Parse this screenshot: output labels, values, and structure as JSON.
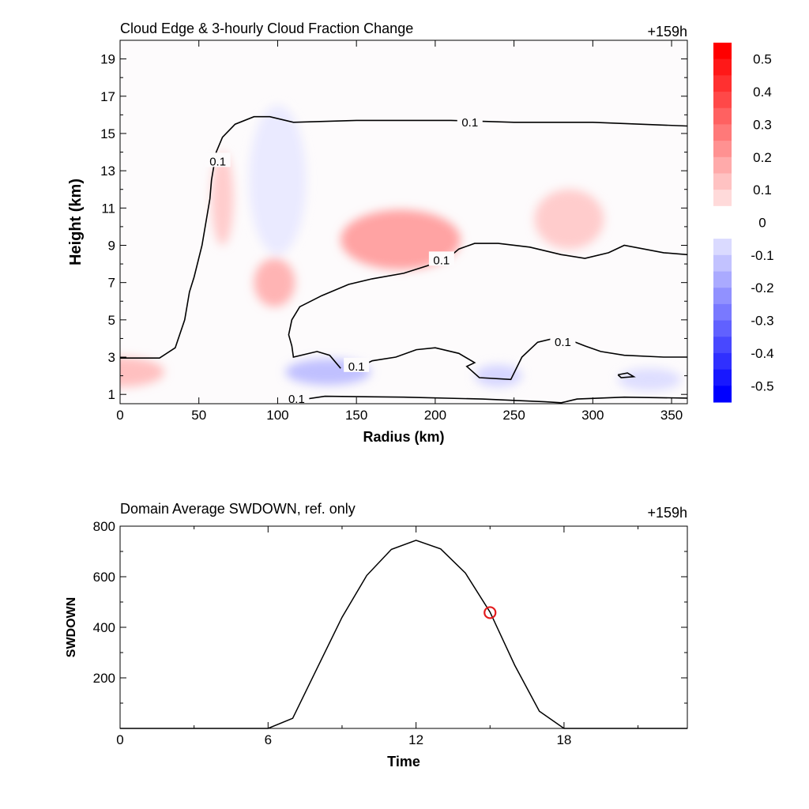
{
  "chart_data": [
    {
      "type": "heatmap",
      "title": "Cloud Edge & 3-hourly Cloud Fraction Change",
      "time_label": "+159h",
      "xlabel": "Radius (km)",
      "ylabel": "Height (km)",
      "xlim": [
        0,
        360
      ],
      "ylim": [
        0.5,
        20
      ],
      "xticks": [
        0,
        50,
        100,
        150,
        200,
        250,
        300,
        350
      ],
      "yticks": [
        1,
        3,
        5,
        7,
        9,
        11,
        13,
        15,
        17,
        19
      ],
      "colorbar": {
        "min": -0.55,
        "max": 0.55,
        "step": 0.05,
        "ticks": [
          "0.5",
          "0.4",
          "0.3",
          "0.2",
          "0.1",
          "0",
          "-0.1",
          "-0.2",
          "-0.3",
          "-0.4",
          "-0.5"
        ],
        "colors": {
          "positive": "#ff0000",
          "negative": "#0000ff",
          "zero": "#ffffff"
        }
      },
      "contour_level_label": "0.1",
      "contours": [
        {
          "points": [
            [
              0,
              2.95
            ],
            [
              25,
              2.95
            ],
            [
              35,
              3.5
            ],
            [
              41,
              5
            ],
            [
              44,
              6.5
            ],
            [
              47,
              7.3
            ],
            [
              52,
              9
            ],
            [
              55,
              10.5
            ],
            [
              57,
              11.5
            ],
            [
              58,
              12.5
            ],
            [
              61,
              14
            ],
            [
              65,
              14.8
            ],
            [
              73,
              15.5
            ],
            [
              85,
              15.9
            ],
            [
              95,
              15.9
            ],
            [
              110,
              15.6
            ],
            [
              150,
              15.7
            ],
            [
              210,
              15.7
            ],
            [
              250,
              15.6
            ],
            [
              300,
              15.6
            ],
            [
              330,
              15.5
            ],
            [
              360,
              15.4
            ]
          ],
          "label_points": [
            [
              62,
              13.5
            ],
            [
              222,
              15.6
            ]
          ]
        },
        {
          "points": [
            [
              140,
              2.4
            ],
            [
              133,
              3.1
            ],
            [
              125,
              3.3
            ],
            [
              110,
              3.0
            ],
            [
              109,
              3.6
            ],
            [
              107,
              4.2
            ],
            [
              109,
              5.0
            ],
            [
              114,
              5.7
            ],
            [
              128,
              6.3
            ],
            [
              145,
              6.9
            ],
            [
              160,
              7.2
            ],
            [
              180,
              7.5
            ],
            [
              195,
              7.9
            ],
            [
              208,
              8.3
            ],
            [
              215,
              8.8
            ],
            [
              225,
              9.1
            ],
            [
              240,
              9.1
            ],
            [
              260,
              8.9
            ],
            [
              280,
              8.5
            ],
            [
              295,
              8.3
            ],
            [
              310,
              8.6
            ],
            [
              320,
              9.0
            ],
            [
              345,
              8.6
            ],
            [
              360,
              8.5
            ]
          ],
          "label_points": [
            [
              204,
              8.2
            ]
          ]
        },
        {
          "points": [
            [
              148,
              2.3
            ],
            [
              160,
              2.8
            ],
            [
              175,
              3.0
            ],
            [
              188,
              3.4
            ],
            [
              200,
              3.5
            ],
            [
              215,
              3.2
            ],
            [
              225,
              2.7
            ],
            [
              220,
              2.5
            ],
            [
              228,
              1.9
            ],
            [
              248,
              1.8
            ],
            [
              255,
              3.0
            ],
            [
              265,
              3.8
            ],
            [
              280,
              4.1
            ],
            [
              295,
              3.6
            ],
            [
              305,
              3.3
            ],
            [
              320,
              3.1
            ],
            [
              345,
              3.0
            ],
            [
              360,
              3.0
            ]
          ],
          "label_points": [
            [
              281,
              3.8
            ],
            [
              150,
              2.5
            ]
          ]
        },
        {
          "points": [
            [
              110,
              0.65
            ],
            [
              130,
              0.9
            ],
            [
              180,
              0.85
            ],
            [
              230,
              0.75
            ],
            [
              270,
              0.6
            ],
            [
              280,
              0.55
            ],
            [
              290,
              0.75
            ],
            [
              320,
              0.85
            ],
            [
              360,
              0.8
            ]
          ],
          "label_points": [
            [
              112,
              0.75
            ]
          ]
        },
        {
          "points": [
            [
              316,
              2.05
            ],
            [
              322,
              2.15
            ],
            [
              326,
              1.95
            ],
            [
              318,
              1.9
            ],
            [
              316,
              2.05
            ]
          ],
          "label_points": []
        }
      ],
      "anomalies": [
        {
          "r": 0,
          "z": 2.2,
          "dr": 28,
          "dz": 0.8,
          "value": 0.15
        },
        {
          "r": 65,
          "z": 11.5,
          "dr": 7,
          "dz": 2.5,
          "value": 0.12
        },
        {
          "r": 98,
          "z": 7.0,
          "dr": 13,
          "dz": 1.3,
          "value": 0.18
        },
        {
          "r": 178,
          "z": 9.3,
          "dr": 38,
          "dz": 1.6,
          "value": 0.22
        },
        {
          "r": 285,
          "z": 10.4,
          "dr": 22,
          "dz": 1.6,
          "value": 0.12
        },
        {
          "r": 100,
          "z": 12.5,
          "dr": 18,
          "dz": 4.0,
          "value": -0.05
        },
        {
          "r": 132,
          "z": 2.2,
          "dr": 27,
          "dz": 0.7,
          "value": -0.15
        },
        {
          "r": 240,
          "z": 2.0,
          "dr": 15,
          "dz": 0.6,
          "value": -0.1
        },
        {
          "r": 336,
          "z": 1.8,
          "dr": 20,
          "dz": 0.6,
          "value": -0.08
        }
      ]
    },
    {
      "type": "line",
      "title": "Domain Average SWDOWN, ref. only",
      "time_label": "+159h",
      "xlabel": "Time",
      "ylabel": "SWDOWN",
      "xlim": [
        0,
        23
      ],
      "ylim": [
        0,
        800
      ],
      "xticks": [
        0,
        6,
        12,
        18
      ],
      "yticks": [
        200,
        400,
        600,
        800
      ],
      "series": [
        {
          "x": [
            0,
            1,
            2,
            3,
            4,
            5,
            6,
            7,
            8,
            9,
            10,
            11,
            12,
            13,
            14,
            15,
            16,
            17,
            18,
            19,
            20,
            21,
            22,
            23
          ],
          "values": [
            0,
            0,
            0,
            0,
            0,
            0,
            0,
            40,
            240,
            440,
            605,
            708,
            744,
            710,
            615,
            460,
            250,
            68,
            0,
            0,
            0,
            0,
            0,
            0
          ],
          "color": "#000000"
        }
      ],
      "marker": {
        "x": 15,
        "y": 458,
        "color": "#e31a1c"
      }
    }
  ]
}
